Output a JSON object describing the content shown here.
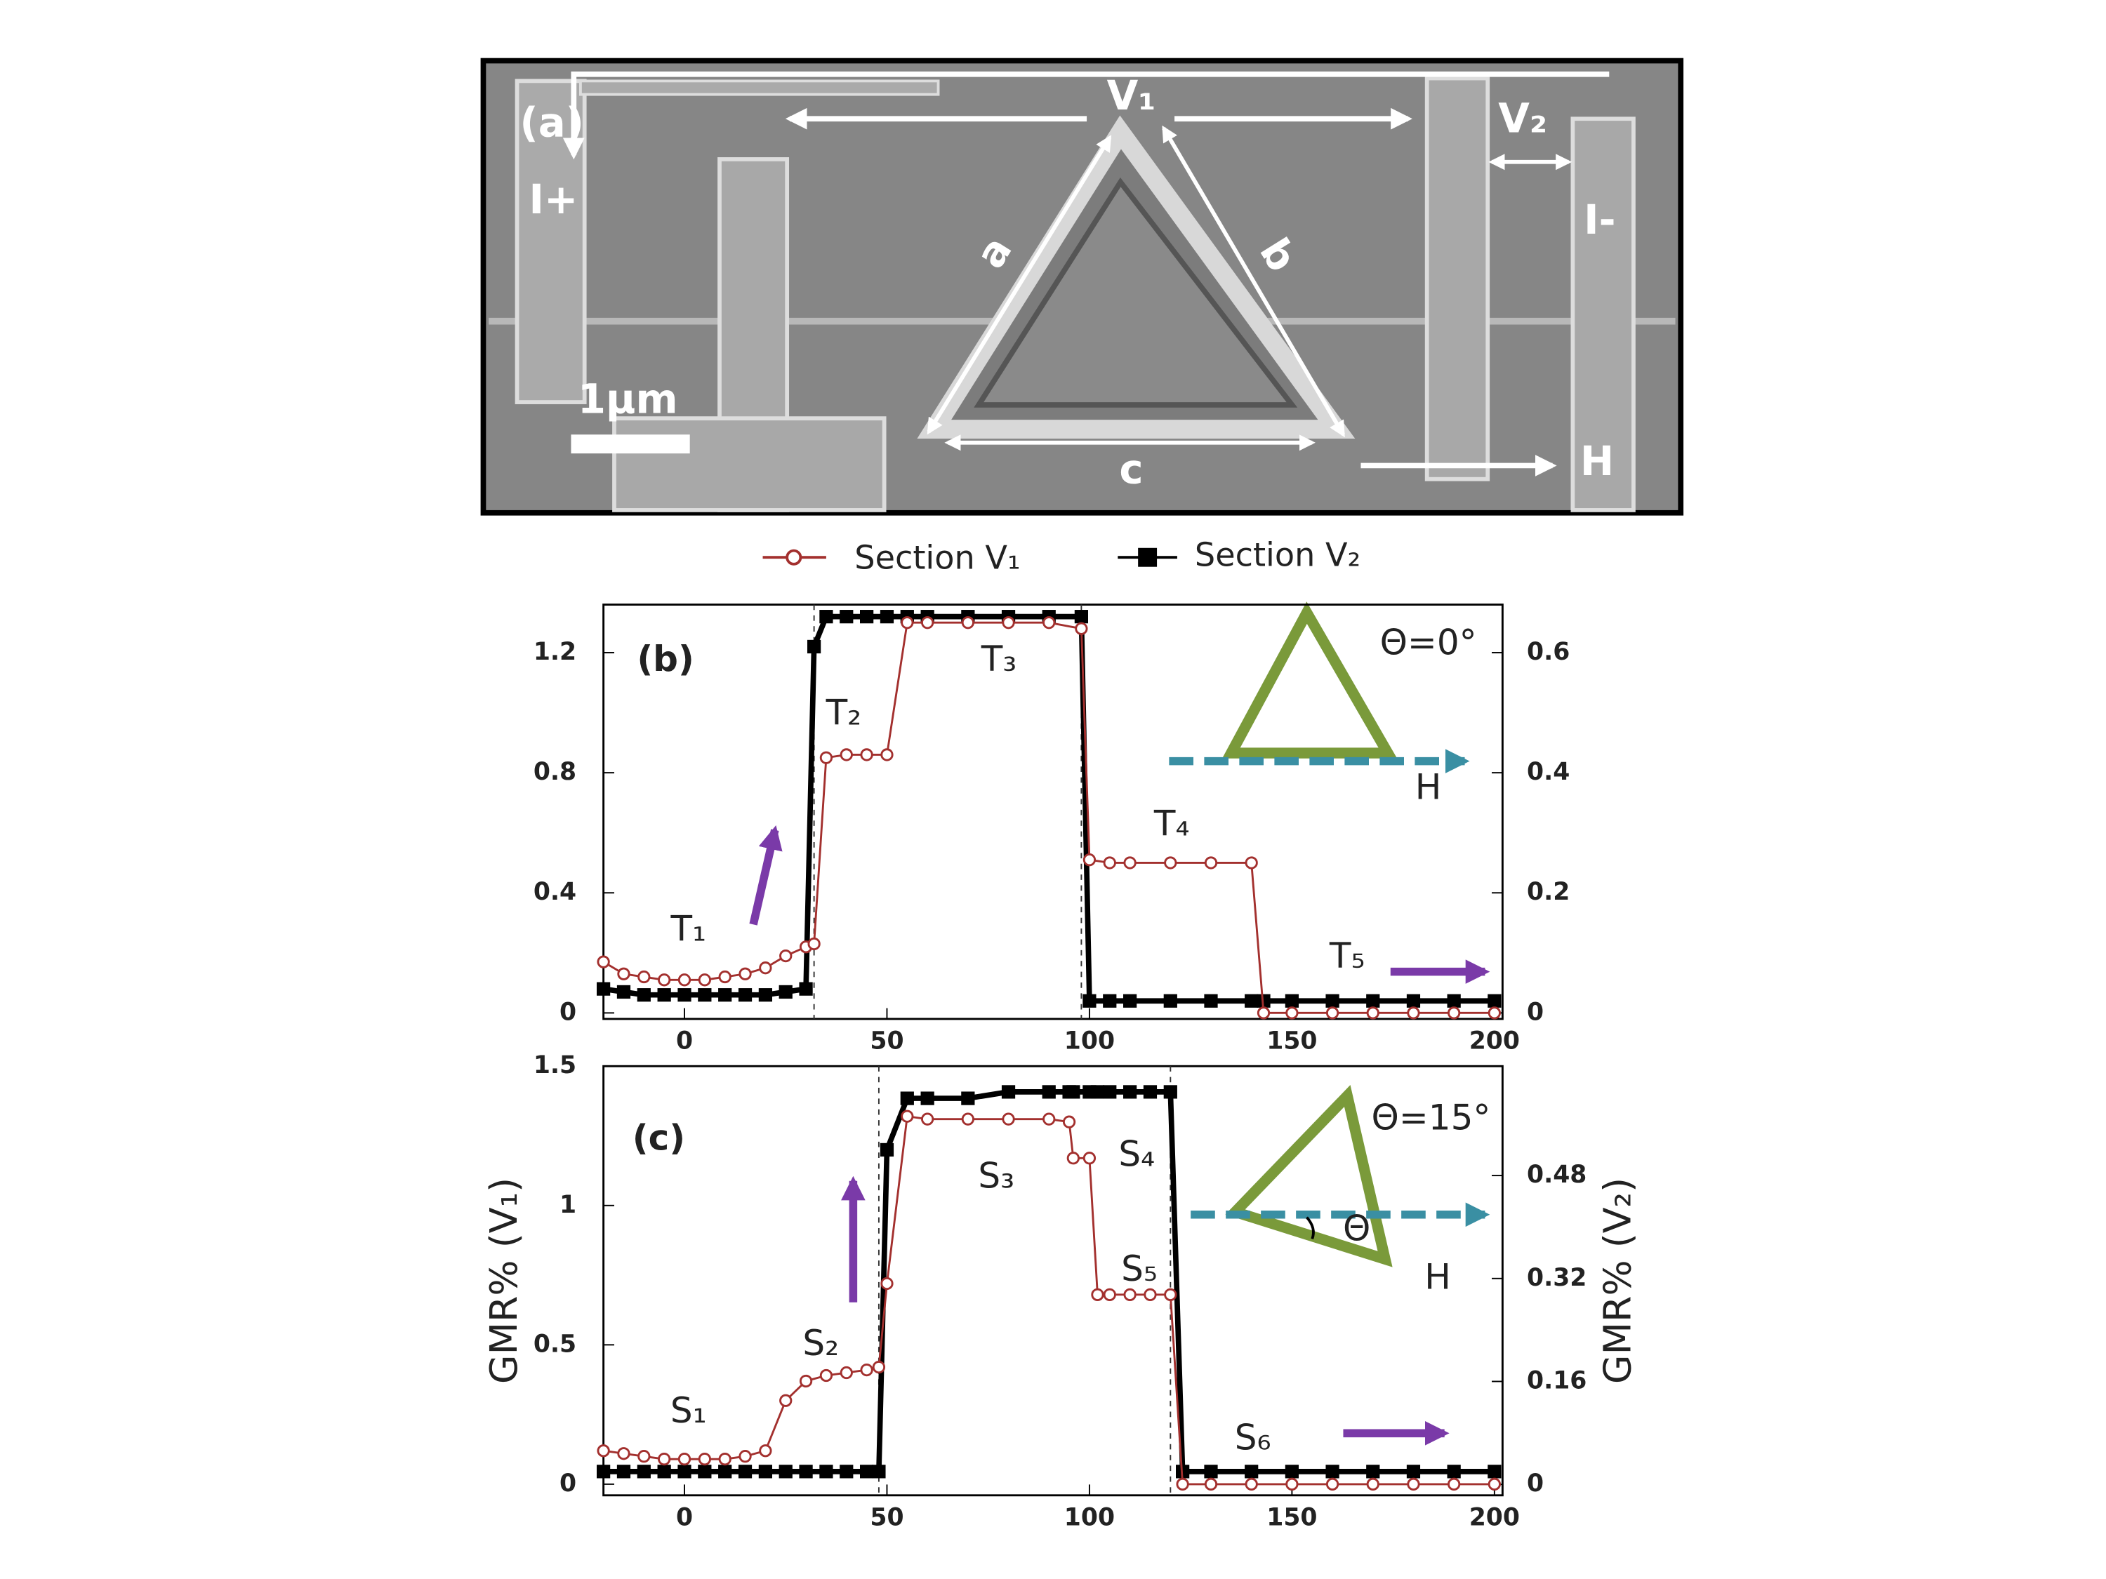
{
  "image": {
    "labels": [
      "(a)",
      "V₁",
      "V₂",
      "I+",
      "I-",
      "a",
      "b",
      "c",
      "1μm",
      "H"
    ]
  },
  "legend": [
    "Section V₁",
    "Section V₂"
  ],
  "chart_data": [
    {
      "type": "line",
      "annotations": [
        "(b)",
        "T₁",
        "T₂",
        "T₃",
        "T₄",
        "T₅",
        "Θ=0°",
        "H"
      ],
      "x": [
        -20,
        -15,
        -10,
        -5,
        0,
        5,
        10,
        15,
        20,
        25,
        30,
        32,
        35,
        40,
        45,
        50,
        55,
        60,
        70,
        80,
        90,
        98,
        100,
        105,
        110,
        120,
        130,
        140,
        143,
        150,
        160,
        170,
        180,
        190,
        200
      ],
      "series": [
        {
          "name": "Section V₁",
          "color": "#a3302e",
          "axis": "y",
          "values": [
            0.17,
            0.13,
            0.12,
            0.11,
            0.11,
            0.11,
            0.12,
            0.13,
            0.15,
            0.19,
            0.22,
            0.23,
            0.85,
            0.86,
            0.86,
            0.86,
            1.3,
            1.3,
            1.3,
            1.3,
            1.3,
            1.28,
            0.51,
            0.5,
            0.5,
            0.5,
            0.5,
            0.5,
            0,
            0,
            0,
            0,
            0,
            0,
            0
          ]
        },
        {
          "name": "Section V₂",
          "color": "#000000",
          "axis": "y2",
          "values": [
            0.04,
            0.035,
            0.03,
            0.03,
            0.03,
            0.03,
            0.03,
            0.03,
            0.03,
            0.035,
            0.04,
            0.61,
            0.66,
            0.66,
            0.66,
            0.66,
            0.66,
            0.66,
            0.66,
            0.66,
            0.66,
            0.66,
            0.02,
            0.02,
            0.02,
            0.02,
            0.02,
            0.02,
            0.02,
            0.02,
            0.02,
            0.02,
            0.02,
            0.02,
            0.02
          ]
        }
      ],
      "vlines": [
        32,
        98
      ],
      "xlim": [
        -20,
        202
      ],
      "xticks": [
        0,
        50,
        100,
        150,
        200
      ],
      "ylim": [
        -0.02,
        1.36
      ],
      "yticks": [
        0,
        0.4,
        0.8,
        1.2
      ],
      "y2lim": [
        -0.01,
        0.68
      ],
      "y2ticks": [
        0,
        0.2,
        0.4,
        0.6
      ]
    },
    {
      "type": "line",
      "annotations": [
        "(c)",
        "S₁",
        "S₂",
        "S₃",
        "S₄",
        "S₅",
        "S₆",
        "Θ=15°",
        "H",
        "Θ"
      ],
      "ylabel": "GMR% (V₁)",
      "y2label": "GMR% (V₂)",
      "x": [
        -20,
        -15,
        -10,
        -5,
        0,
        5,
        10,
        15,
        20,
        25,
        30,
        35,
        40,
        45,
        48,
        50,
        55,
        60,
        70,
        80,
        90,
        95,
        96,
        100,
        102,
        105,
        110,
        115,
        120,
        123,
        130,
        140,
        150,
        160,
        170,
        180,
        190,
        200
      ],
      "series": [
        {
          "name": "Section V₁",
          "color": "#a3302e",
          "axis": "y",
          "values": [
            0.12,
            0.11,
            0.1,
            0.09,
            0.09,
            0.09,
            0.09,
            0.1,
            0.12,
            0.3,
            0.37,
            0.39,
            0.4,
            0.41,
            0.42,
            0.72,
            1.32,
            1.31,
            1.31,
            1.31,
            1.31,
            1.3,
            1.17,
            1.17,
            0.68,
            0.68,
            0.68,
            0.68,
            0.68,
            0,
            0,
            0,
            0,
            0,
            0,
            0,
            0,
            0
          ]
        },
        {
          "name": "Section V₂",
          "color": "#000000",
          "axis": "y2",
          "values": [
            0.02,
            0.02,
            0.02,
            0.02,
            0.02,
            0.02,
            0.02,
            0.02,
            0.02,
            0.02,
            0.02,
            0.02,
            0.02,
            0.02,
            0.02,
            0.52,
            0.6,
            0.6,
            0.6,
            0.61,
            0.61,
            0.61,
            0.61,
            0.61,
            0.61,
            0.61,
            0.61,
            0.61,
            0.61,
            0.02,
            0.02,
            0.02,
            0.02,
            0.02,
            0.02,
            0.02,
            0.02,
            0.02
          ]
        }
      ],
      "vlines": [
        48,
        120
      ],
      "xlim": [
        -20,
        202
      ],
      "xticks": [
        0,
        50,
        100,
        150,
        200
      ],
      "ylim": [
        -0.04,
        1.5
      ],
      "yticks": [
        0,
        0.5,
        1,
        1.5
      ],
      "y2lim": [
        -0.017,
        0.65
      ],
      "y2ticks": [
        0,
        0.16,
        0.32,
        0.48
      ]
    }
  ]
}
